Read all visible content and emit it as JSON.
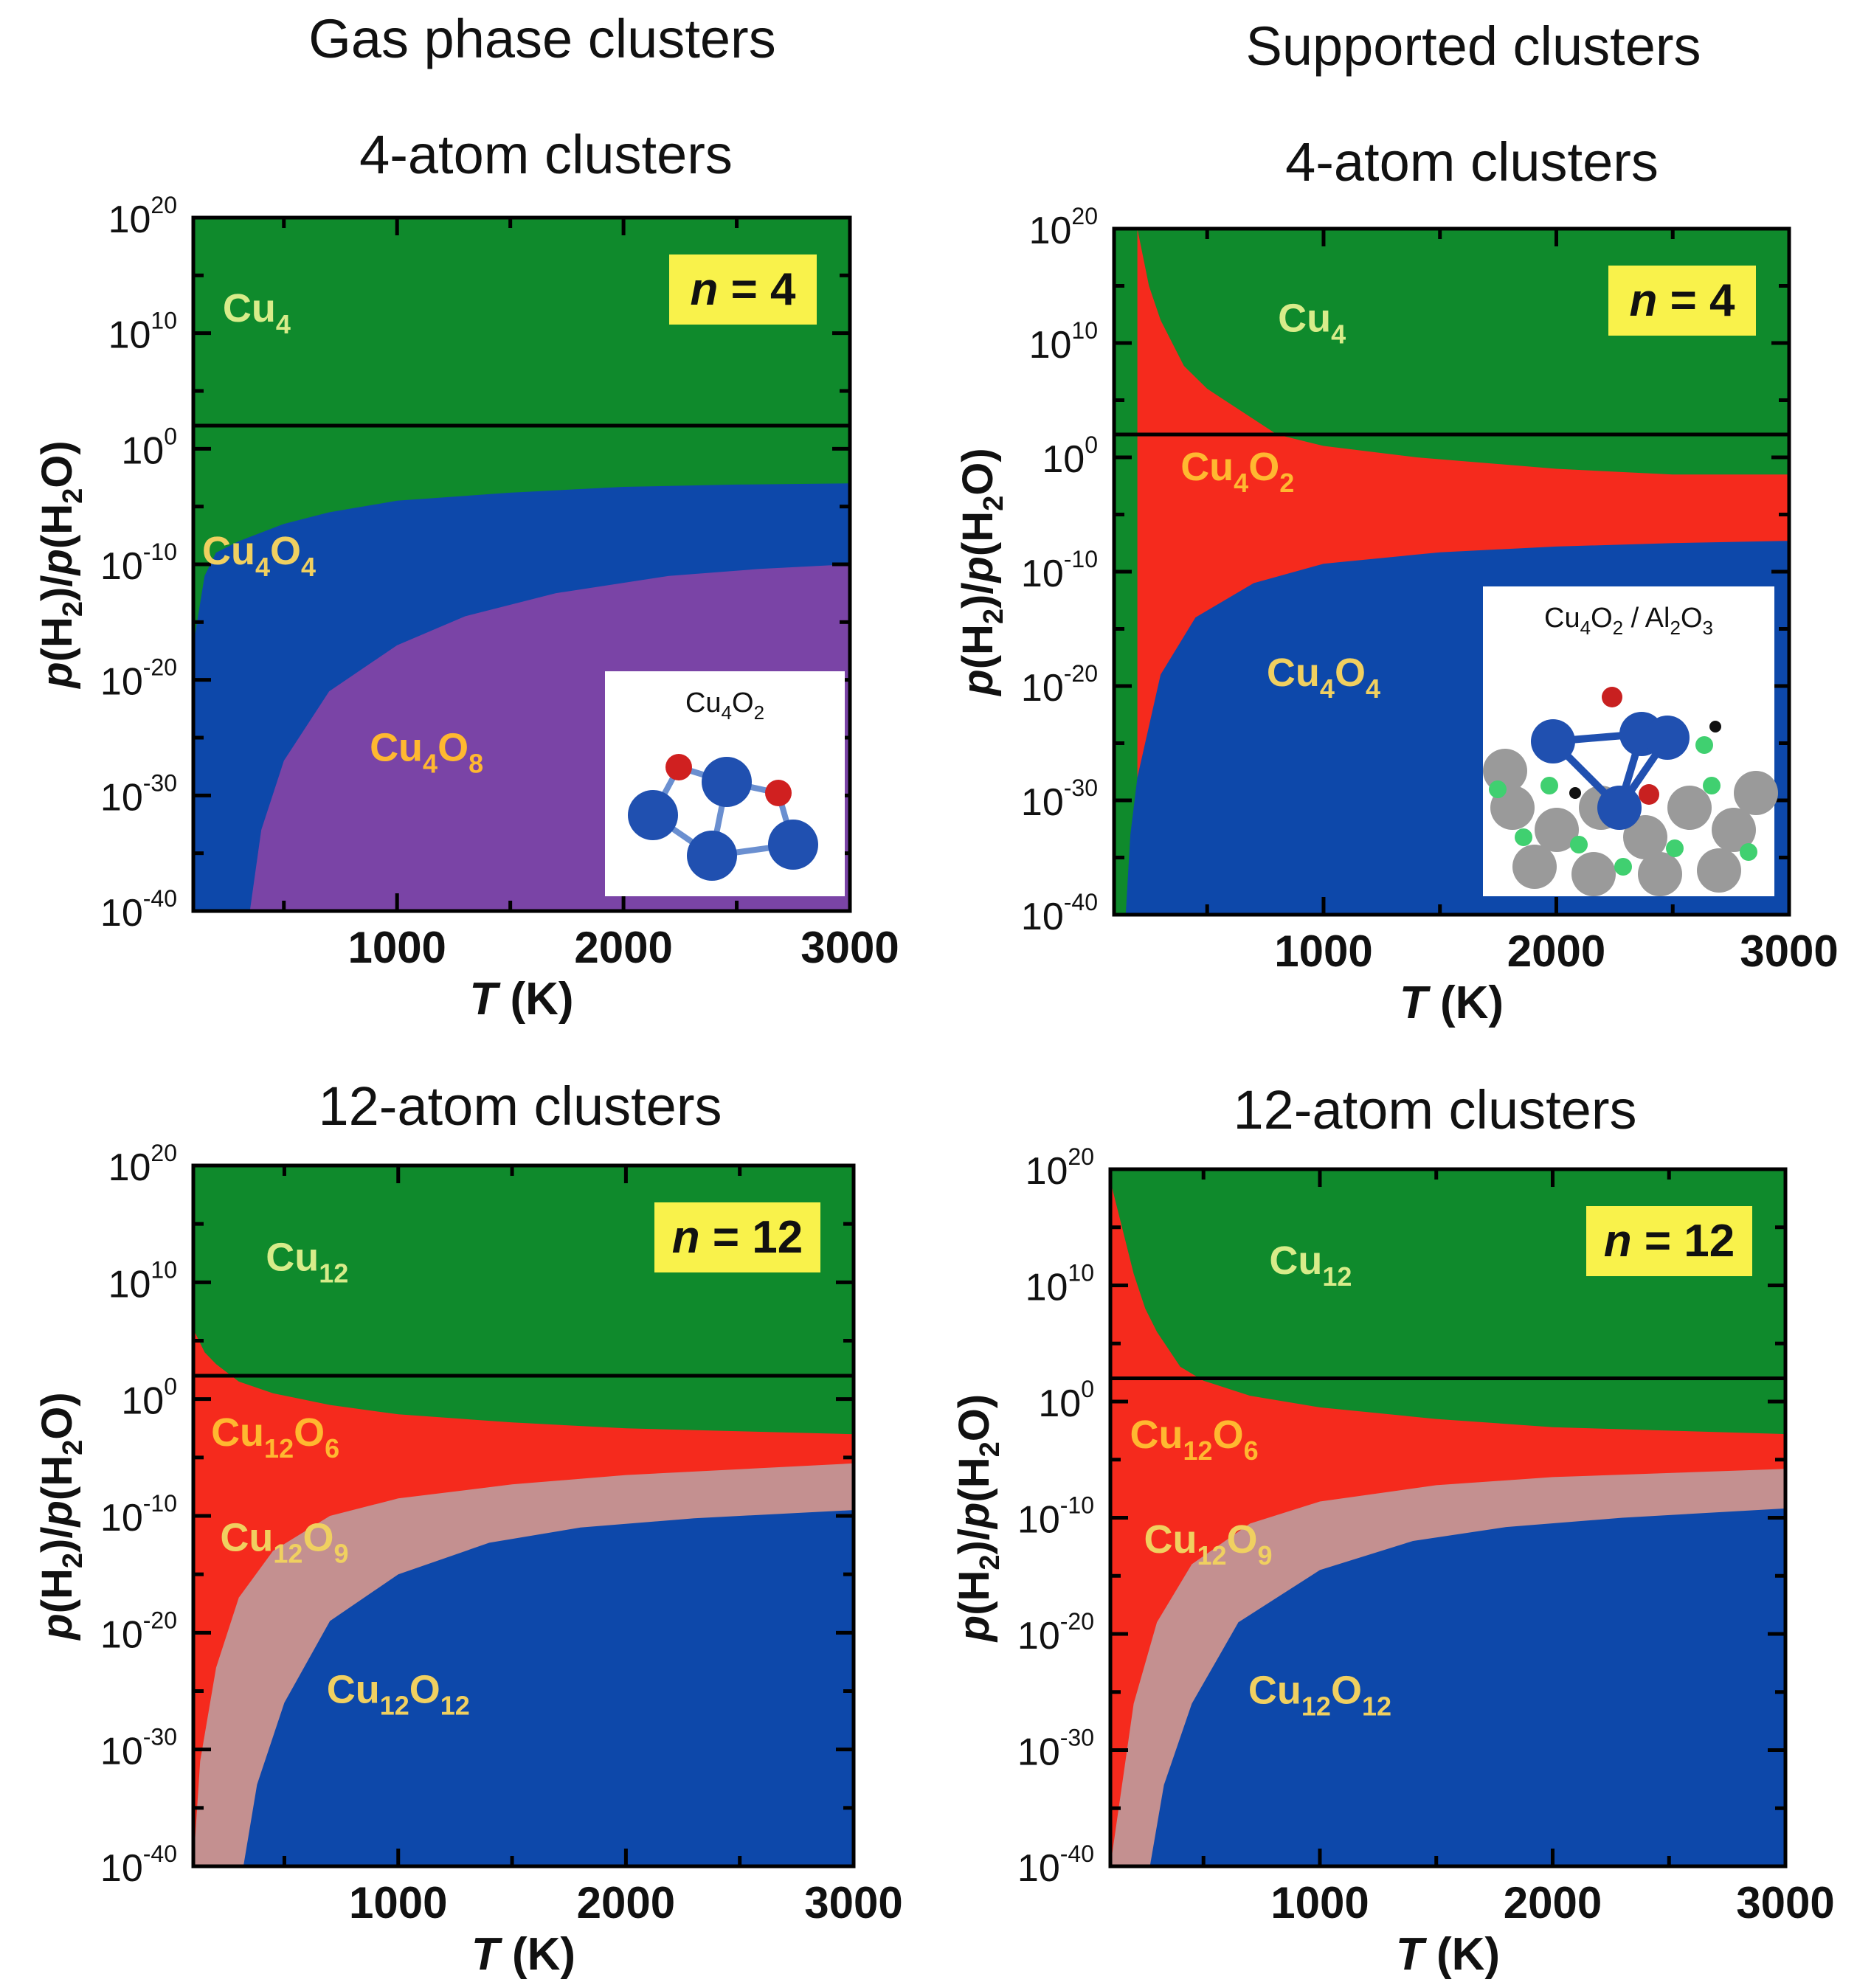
{
  "columns": [
    {
      "title": "Gas phase clusters"
    },
    {
      "title": "Supported clusters"
    }
  ],
  "colors": {
    "cu": "#0f8a2c",
    "cu_ox_low": "#f52a1d",
    "cu_ox_mid": "#c49090",
    "cu_ox_high": "#0d48aa",
    "cu4o8": "#7a44a6",
    "badge": "#f9f24b",
    "label_light": "#d8ec8a",
    "label_yellow": "#f0d060",
    "label_orange": "#ffb830"
  },
  "chart_data": [
    {
      "type": "area",
      "id": "gas-4",
      "title": "4-atom clusters",
      "xlabel": "T (K)",
      "xlabel_var": "T",
      "xlabel_unit": "(K)",
      "ylabel": "p(H2)/p(H2O)",
      "xlim": [
        100,
        3000
      ],
      "ylim": [
        -40,
        20
      ],
      "y_scale": "log10",
      "xticks": [
        1000,
        2000,
        3000
      ],
      "xtick_labels": [
        "1000",
        "2000",
        "3000"
      ],
      "yticks": [
        -40,
        -30,
        -20,
        -10,
        0,
        10,
        20
      ],
      "ytick_labels": [
        {
          "base": "10",
          "exp": "-40"
        },
        {
          "base": "10",
          "exp": "-30"
        },
        {
          "base": "10",
          "exp": "-20"
        },
        {
          "base": "10",
          "exp": "-10"
        },
        {
          "base": "10",
          "exp": "0"
        },
        {
          "base": "10",
          "exp": "10"
        },
        {
          "base": "10",
          "exp": "20"
        }
      ],
      "reference_line_y": 2,
      "badge": "n = 4",
      "badge_var": "n",
      "badge_rest": " = 4",
      "regions": [
        {
          "name": "Cu4",
          "color": "cu",
          "label": "Cu",
          "sub": "4",
          "label_color": "label_light",
          "label_at": [
            380,
            11
          ]
        },
        {
          "name": "Cu4O4",
          "color": "cu_ox_high",
          "label": "Cu",
          "sub": "4",
          "label2": "O",
          "sub2": "4",
          "label_color": "label_yellow",
          "label_at": [
            390,
            -10
          ]
        },
        {
          "name": "Cu4O8",
          "color": "cu4o8",
          "label": "Cu",
          "sub": "4",
          "label2": "O",
          "sub2": "8",
          "label_color": "label_orange",
          "label_at": [
            1130,
            -27
          ]
        }
      ],
      "boundaries": [
        {
          "between": [
            "Cu4",
            "Cu4O4"
          ],
          "points": [
            [
              100,
              -17
            ],
            [
              150,
              -11
            ],
            [
              200,
              -9
            ],
            [
              300,
              -8
            ],
            [
              500,
              -6.5
            ],
            [
              700,
              -5.5
            ],
            [
              1000,
              -4.5
            ],
            [
              1500,
              -3.8
            ],
            [
              2000,
              -3.3
            ],
            [
              2500,
              -3.1
            ],
            [
              3000,
              -3
            ]
          ]
        },
        {
          "between": [
            "Cu4O4",
            "Cu4O8"
          ],
          "points": [
            [
              350,
              -40
            ],
            [
              400,
              -33
            ],
            [
              500,
              -27
            ],
            [
              700,
              -21
            ],
            [
              1000,
              -17
            ],
            [
              1300,
              -14.5
            ],
            [
              1700,
              -12.5
            ],
            [
              2200,
              -11
            ],
            [
              2600,
              -10.4
            ],
            [
              3000,
              -10
            ]
          ]
        }
      ],
      "inset": {
        "title": "Cu",
        "title_sub": "4",
        "title_rest": "O",
        "title_sub2": "2"
      }
    },
    {
      "type": "area",
      "id": "sup-4",
      "title": "4-atom clusters",
      "xlabel": "T (K)",
      "xlabel_var": "T",
      "xlabel_unit": "(K)",
      "ylabel": "p(H2)/p(H2O)",
      "xlim": [
        100,
        3000
      ],
      "ylim": [
        -40,
        20
      ],
      "y_scale": "log10",
      "xticks": [
        1000,
        2000,
        3000
      ],
      "xtick_labels": [
        "1000",
        "2000",
        "3000"
      ],
      "yticks": [
        -40,
        -30,
        -20,
        -10,
        0,
        10,
        20
      ],
      "ytick_labels": [
        {
          "base": "10",
          "exp": "-40"
        },
        {
          "base": "10",
          "exp": "-30"
        },
        {
          "base": "10",
          "exp": "-20"
        },
        {
          "base": "10",
          "exp": "-10"
        },
        {
          "base": "10",
          "exp": "0"
        },
        {
          "base": "10",
          "exp": "10"
        },
        {
          "base": "10",
          "exp": "20"
        }
      ],
      "reference_line_y": 2,
      "badge": "n = 4",
      "badge_var": "n",
      "badge_rest": " = 4",
      "regions": [
        {
          "name": "Cu4",
          "color": "cu",
          "label": "Cu",
          "sub": "4",
          "label_color": "label_light",
          "label_at": [
            950,
            11
          ]
        },
        {
          "name": "Cu4O2",
          "color": "cu_ox_low",
          "label": "Cu",
          "sub": "4",
          "label2": "O",
          "sub2": "2",
          "label_color": "label_orange",
          "label_at": [
            630,
            -2
          ]
        },
        {
          "name": "Cu4O4",
          "color": "cu_ox_high",
          "label": "Cu",
          "sub": "4",
          "label2": "O",
          "sub2": "4",
          "label_color": "label_yellow",
          "label_at": [
            1000,
            -20
          ]
        }
      ],
      "boundaries": [
        {
          "between": [
            "Cu4",
            "Cu4O2"
          ],
          "points": [
            [
              200,
              20
            ],
            [
              250,
              15
            ],
            [
              300,
              12
            ],
            [
              400,
              8
            ],
            [
              500,
              6
            ],
            [
              650,
              4
            ],
            [
              800,
              2
            ],
            [
              1000,
              1
            ],
            [
              1400,
              0
            ],
            [
              2000,
              -1
            ],
            [
              2500,
              -1.5
            ],
            [
              3000,
              -1.5
            ]
          ]
        },
        {
          "between": [
            "Cu4O2",
            "Cu4O4"
          ],
          "points": [
            [
              150,
              -40
            ],
            [
              170,
              -33
            ],
            [
              200,
              -28
            ],
            [
              300,
              -19
            ],
            [
              450,
              -14
            ],
            [
              700,
              -11
            ],
            [
              1000,
              -9.3
            ],
            [
              1500,
              -8.3
            ],
            [
              2000,
              -7.8
            ],
            [
              2500,
              -7.5
            ],
            [
              3000,
              -7.3
            ]
          ]
        }
      ],
      "inset": {
        "title": "Cu",
        "title_sub": "4",
        "title_rest": "O",
        "title_sub2": "2",
        "title_suffix": " / Al",
        "title_sub3": "2",
        "title_rest2": "O",
        "title_sub4": "3"
      }
    },
    {
      "type": "area",
      "id": "gas-12",
      "title": "12-atom clusters",
      "xlabel": "T (K)",
      "xlabel_var": "T",
      "xlabel_unit": "(K)",
      "ylabel": "p(H2)/p(H2O)",
      "xlim": [
        100,
        3000
      ],
      "ylim": [
        -40,
        20
      ],
      "y_scale": "log10",
      "xticks": [
        1000,
        2000,
        3000
      ],
      "xtick_labels": [
        "1000",
        "2000",
        "3000"
      ],
      "yticks": [
        -40,
        -30,
        -20,
        -10,
        0,
        10,
        20
      ],
      "ytick_labels": [
        {
          "base": "10",
          "exp": "-40"
        },
        {
          "base": "10",
          "exp": "-30"
        },
        {
          "base": "10",
          "exp": "-20"
        },
        {
          "base": "10",
          "exp": "-10"
        },
        {
          "base": "10",
          "exp": "0"
        },
        {
          "base": "10",
          "exp": "10"
        },
        {
          "base": "10",
          "exp": "20"
        }
      ],
      "reference_line_y": 2,
      "badge": "n = 12",
      "badge_var": "n",
      "badge_rest": " = 12",
      "regions": [
        {
          "name": "Cu12",
          "color": "cu",
          "label": "Cu",
          "sub": "12",
          "label_color": "label_light",
          "label_at": [
            600,
            11
          ]
        },
        {
          "name": "Cu12O6",
          "color": "cu_ox_low",
          "label": "Cu",
          "sub": "12",
          "label2": "O",
          "sub2": "6",
          "label_color": "label_orange",
          "label_at": [
            460,
            -4
          ]
        },
        {
          "name": "Cu12O9",
          "color": "cu_ox_mid",
          "label": "Cu",
          "sub": "12",
          "label2": "O",
          "sub2": "9",
          "label_color": "label_yellow",
          "label_at": [
            500,
            -13
          ]
        },
        {
          "name": "Cu12O12",
          "color": "cu_ox_high",
          "label": "Cu",
          "sub": "12",
          "label2": "O",
          "sub2": "12",
          "label_color": "label_yellow",
          "label_at": [
            1000,
            -26
          ]
        }
      ],
      "boundaries": [
        {
          "between": [
            "Cu12",
            "Cu12O6"
          ],
          "points": [
            [
              100,
              6
            ],
            [
              150,
              4
            ],
            [
              200,
              3
            ],
            [
              300,
              1.5
            ],
            [
              450,
              0.5
            ],
            [
              700,
              -0.5
            ],
            [
              1000,
              -1.3
            ],
            [
              1500,
              -2
            ],
            [
              2000,
              -2.5
            ],
            [
              3000,
              -3
            ]
          ]
        },
        {
          "between": [
            "Cu12O6",
            "Cu12O9"
          ],
          "points": [
            [
              100,
              -40
            ],
            [
              130,
              -31
            ],
            [
              200,
              -23
            ],
            [
              300,
              -17
            ],
            [
              450,
              -13
            ],
            [
              700,
              -10
            ],
            [
              1000,
              -8.5
            ],
            [
              1500,
              -7.3
            ],
            [
              2000,
              -6.5
            ],
            [
              3000,
              -5.5
            ]
          ]
        },
        {
          "between": [
            "Cu12O9",
            "Cu12O12"
          ],
          "points": [
            [
              320,
              -40
            ],
            [
              380,
              -33
            ],
            [
              500,
              -26
            ],
            [
              700,
              -19
            ],
            [
              1000,
              -15
            ],
            [
              1400,
              -12.3
            ],
            [
              1800,
              -11
            ],
            [
              2300,
              -10.2
            ],
            [
              3000,
              -9.5
            ]
          ]
        }
      ]
    },
    {
      "type": "area",
      "id": "sup-12",
      "title": "12-atom clusters",
      "xlabel": "T (K)",
      "xlabel_var": "T",
      "xlabel_unit": "(K)",
      "ylabel": "p(H2)/p(H2O)",
      "xlim": [
        100,
        3000
      ],
      "ylim": [
        -40,
        20
      ],
      "y_scale": "log10",
      "xticks": [
        1000,
        2000,
        3000
      ],
      "xtick_labels": [
        "1000",
        "2000",
        "3000"
      ],
      "yticks": [
        -40,
        -30,
        -20,
        -10,
        0,
        10,
        20
      ],
      "ytick_labels": [
        {
          "base": "10",
          "exp": "-40"
        },
        {
          "base": "10",
          "exp": "-30"
        },
        {
          "base": "10",
          "exp": "-20"
        },
        {
          "base": "10",
          "exp": "-10"
        },
        {
          "base": "10",
          "exp": "0"
        },
        {
          "base": "10",
          "exp": "10"
        },
        {
          "base": "10",
          "exp": "20"
        }
      ],
      "reference_line_y": 2,
      "badge": "n = 12",
      "badge_var": "n",
      "badge_rest": " = 12",
      "regions": [
        {
          "name": "Cu12",
          "color": "cu",
          "label": "Cu",
          "sub": "12",
          "label_color": "label_light",
          "label_at": [
            960,
            11
          ]
        },
        {
          "name": "Cu12O6",
          "color": "cu_ox_low",
          "label": "Cu",
          "sub": "12",
          "label2": "O",
          "sub2": "6",
          "label_color": "label_orange",
          "label_at": [
            460,
            -4
          ]
        },
        {
          "name": "Cu12O9",
          "color": "cu_ox_mid",
          "label": "Cu",
          "sub": "12",
          "label2": "O",
          "sub2": "9",
          "label_color": "label_yellow",
          "label_at": [
            520,
            -13
          ]
        },
        {
          "name": "Cu12O12",
          "color": "cu_ox_high",
          "label": "Cu",
          "sub": "12",
          "label2": "O",
          "sub2": "12",
          "label_color": "label_yellow",
          "label_at": [
            1000,
            -26
          ]
        }
      ],
      "boundaries": [
        {
          "between": [
            "Cu12",
            "Cu12O6"
          ],
          "points": [
            [
              100,
              19
            ],
            [
              150,
              15
            ],
            [
              200,
              11
            ],
            [
              250,
              8
            ],
            [
              300,
              6
            ],
            [
              400,
              3
            ],
            [
              500,
              1.8
            ],
            [
              700,
              0.5
            ],
            [
              1000,
              -0.5
            ],
            [
              1500,
              -1.5
            ],
            [
              2000,
              -2.2
            ],
            [
              3000,
              -2.8
            ]
          ]
        },
        {
          "between": [
            "Cu12O6",
            "Cu12O9"
          ],
          "points": [
            [
              100,
              -40
            ],
            [
              150,
              -33
            ],
            [
              200,
              -26
            ],
            [
              300,
              -19
            ],
            [
              450,
              -14
            ],
            [
              700,
              -10.5
            ],
            [
              1000,
              -8.6
            ],
            [
              1500,
              -7.2
            ],
            [
              2000,
              -6.5
            ],
            [
              3000,
              -5.8
            ]
          ]
        },
        {
          "between": [
            "Cu12O9",
            "Cu12O12"
          ],
          "points": [
            [
              270,
              -40
            ],
            [
              330,
              -33
            ],
            [
              450,
              -26
            ],
            [
              650,
              -19
            ],
            [
              1000,
              -14.5
            ],
            [
              1400,
              -12
            ],
            [
              1800,
              -10.8
            ],
            [
              2300,
              -10
            ],
            [
              3000,
              -9.2
            ]
          ]
        }
      ]
    }
  ]
}
